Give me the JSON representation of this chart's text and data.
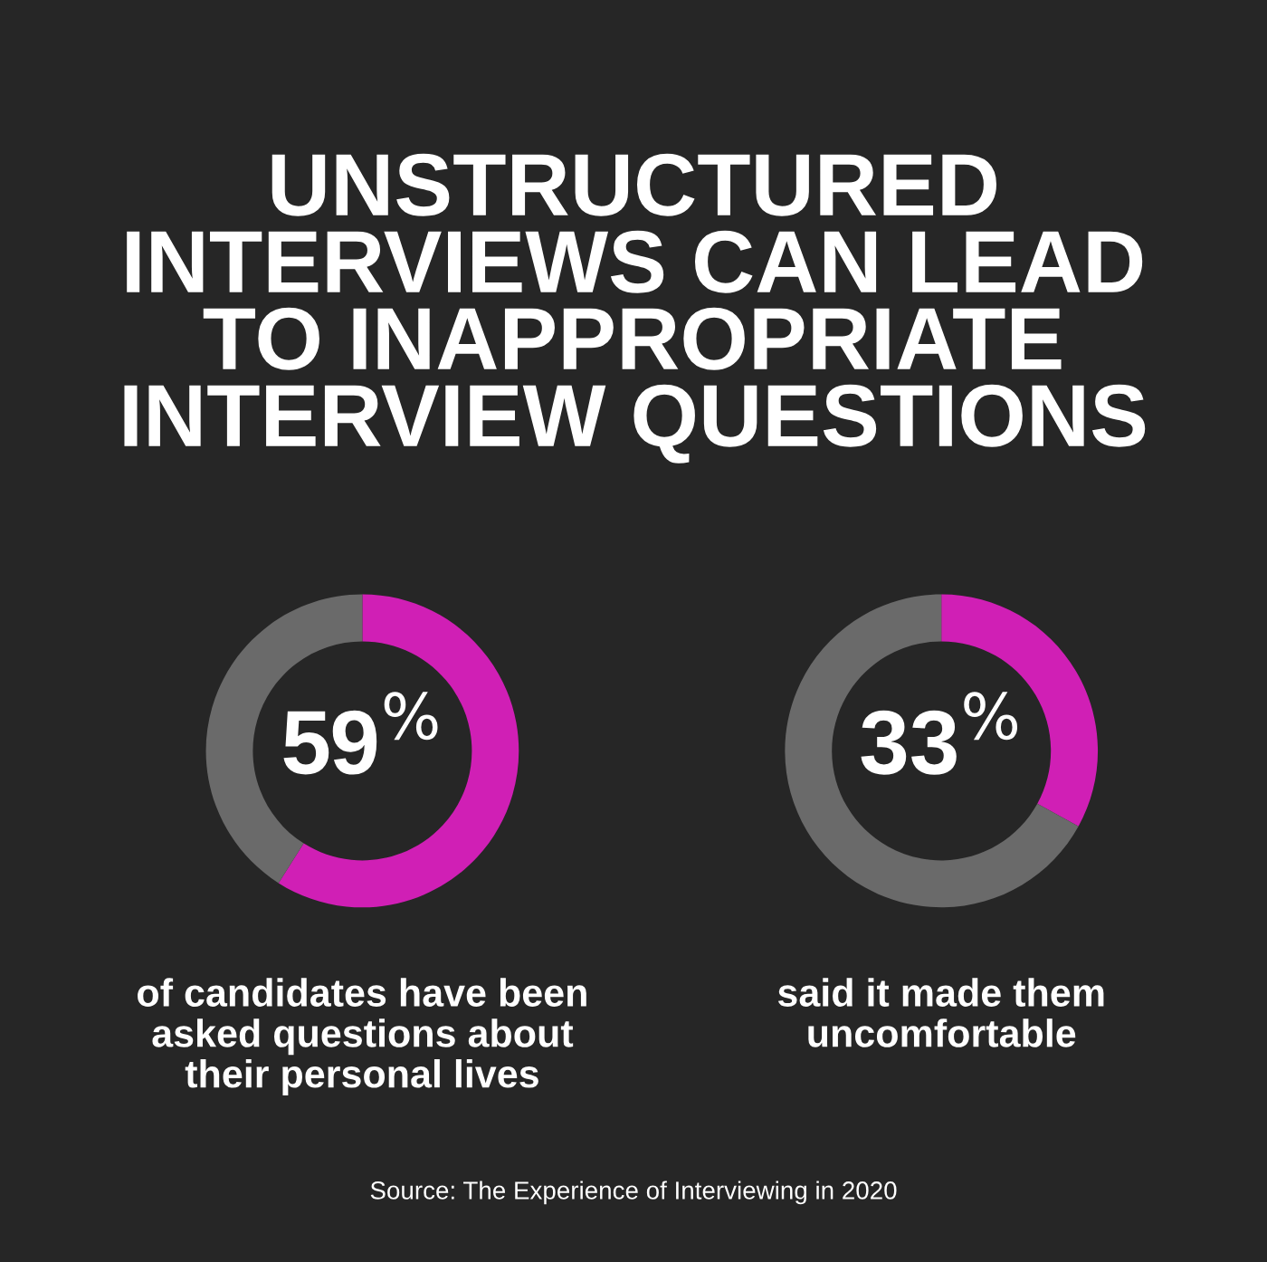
{
  "chart_data": [
    {
      "type": "donut",
      "title": "UNSTRUCTURED\nINTERVIEWS CAN LEAD\nTO INAPPROPRIATE\nINTERVIEW QUESTIONS",
      "categories": [
        null,
        null
      ],
      "values": [
        59,
        41
      ],
      "colors": [
        "#d01fb5",
        "#6a6a6a"
      ],
      "value_labels": [
        "59$^{%}$",
        null
      ],
      "legend": false,
      "annotations": [
        "of candidates have been\nasked questions about\ntheir personal lives"
      ]
    },
    {
      "type": "donut",
      "categories": [
        null,
        null
      ],
      "values": [
        33,
        67
      ],
      "colors": [
        "#d01fb5",
        "#6a6a6a"
      ],
      "value_labels": [
        "33$^{%}$",
        null
      ],
      "legend": false,
      "annotations": [
        "said it made them\nuncomfortable",
        "Source: The Experience of Interviewing in 2020"
      ]
    }
  ]
}
